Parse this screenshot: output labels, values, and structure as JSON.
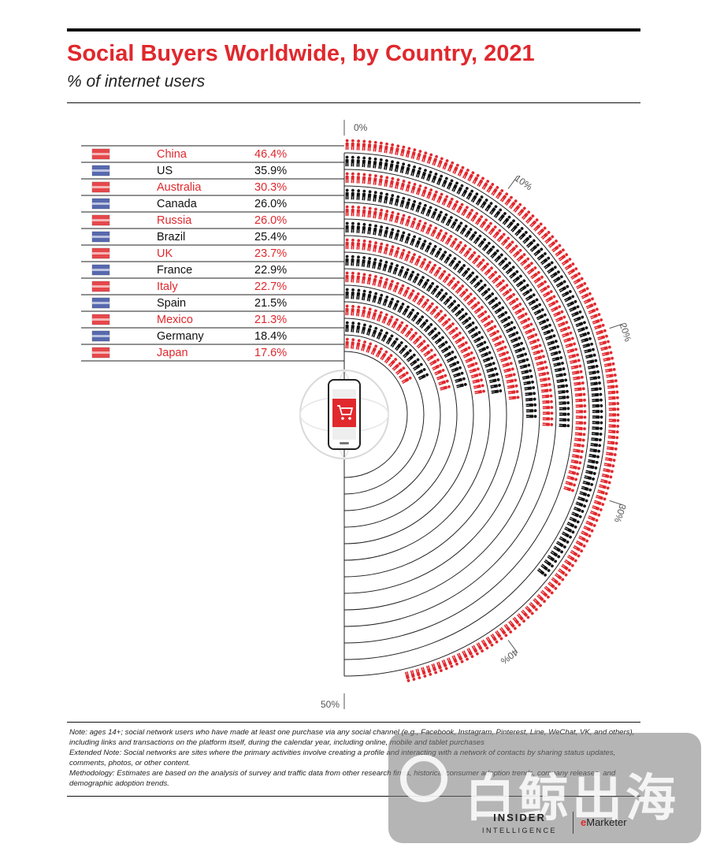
{
  "header": {
    "title": "Social Buyers Worldwide, by Country, 2021",
    "subtitle": "% of internet users"
  },
  "chart_data": {
    "type": "radial-pictogram",
    "title": "Social Buyers Worldwide, by Country, 2021",
    "subtitle": "% of internet users",
    "categories": [
      "China",
      "US",
      "Australia",
      "Canada",
      "Russia",
      "Brazil",
      "UK",
      "France",
      "Italy",
      "Spain",
      "Mexico",
      "Germany",
      "Japan"
    ],
    "values": [
      46.4,
      35.9,
      30.3,
      26.0,
      26.0,
      25.4,
      23.7,
      22.9,
      22.7,
      21.5,
      21.3,
      18.4,
      17.6
    ],
    "value_labels": [
      "46.4%",
      "35.9%",
      "30.3%",
      "26.0%",
      "26.0%",
      "25.4%",
      "23.7%",
      "22.9%",
      "22.7%",
      "21.5%",
      "21.3%",
      "18.4%",
      "17.6%"
    ],
    "axis_ticks": [
      "0%",
      "10%",
      "20%",
      "30%",
      "40%",
      "50%"
    ],
    "axis_range": [
      0,
      50
    ],
    "colors": {
      "odd": "#e0282d",
      "even": "#111111"
    }
  },
  "notes": {
    "note": "Note: ages 14+; social network users who have made at least one purchase via any social channel (e.g., Facebook, Instagram, Pinterest, Line, WeChat, VK, and others), including links and transactions on the platform itself, during the calendar year, including online, mobile and tablet purchases",
    "extended": "Extended Note: Social networks are sites where the primary activities involve creating a profile and interacting with a network of contacts by sharing status updates, comments, photos, or other content.",
    "methodology": "Methodology: Estimates are based on the analysis of survey and traffic data from other research firms, historical consumer adoption trends, company releases, and demographic adoption trends."
  },
  "footer": {
    "logo_line1": "INSIDER",
    "logo_line2": "INTELLIGENCE",
    "emarketer_e": "e",
    "emarketer_rest": "Marketer"
  },
  "watermark": {
    "text": "白鲸出海"
  }
}
